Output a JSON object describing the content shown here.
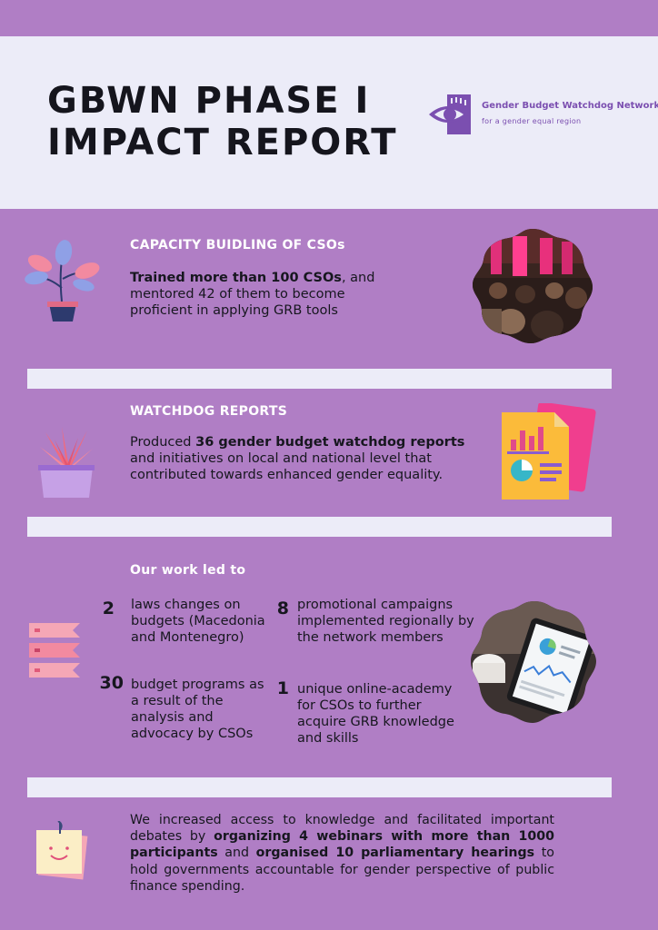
{
  "header": {
    "title_line1": "GBWN PHASE I",
    "title_line2": "IMPACT REPORT",
    "logo_name": "Gender Budget Watchdog Network",
    "logo_tagline": "for a gender equal region"
  },
  "capacity": {
    "heading": "CAPACITY BUIDLING OF CSOs",
    "bold": "Trained more than 100 CSOs",
    "text": ", and mentored 42 of them to become proficient in applying GRB tools"
  },
  "watchdog": {
    "heading": "WATCHDOG REPORTS",
    "pre": "Produced ",
    "bold": "36 gender budget watchdog reports",
    "text": " and initiatives on local and national level that contributed towards enhanced gender equality."
  },
  "work": {
    "heading": "Our work led to",
    "stats": [
      {
        "number": "2",
        "text": "laws changes on budgets (Macedonia and Montenegro)"
      },
      {
        "number": "8",
        "text": "promotional campaigns implemented regionally by the network members"
      },
      {
        "number": "30",
        "text": "budget programs as a result of the analysis and advocacy by CSOs"
      },
      {
        "number": "1",
        "text": "unique online-academy for CSOs to further acquire GRB knowledge and skills"
      }
    ]
  },
  "closing": {
    "p1": "We increased access to knowledge and facilitated important debates by ",
    "b1": "organizing 4 webinars with more than 1000 participants",
    "p2": " and ",
    "b2": "organised 10 parliamentary hearings",
    "p3": " to hold governments accountable for gender perspective of public finance spending."
  },
  "icons": {
    "logo": "eye-logo-icon",
    "capacity": "potted-plant-icon",
    "watchdog": "succulent-plant-icon",
    "work": "ribbon-flags-icon",
    "closing": "sticky-note-icon",
    "report": "report-document-icon"
  },
  "colors": {
    "background": "#b07ec5",
    "panel": "#ececf8",
    "brand": "#7b4fb0"
  }
}
